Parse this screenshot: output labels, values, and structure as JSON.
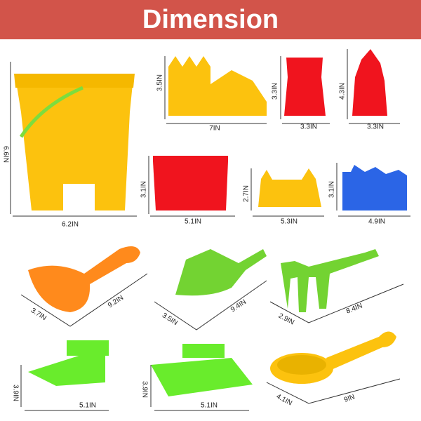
{
  "title": "Dimension",
  "items": [
    {
      "height": "6.6IN",
      "width": "6.2IN"
    },
    {
      "height": "3.5IN",
      "width": "7IN"
    },
    {
      "height": "3.3IN",
      "width": "3.3IN"
    },
    {
      "height": "4.3IN",
      "width": "3.3IN"
    },
    {
      "height": "3.1IN",
      "width": "5.1IN"
    },
    {
      "height": "2.7IN",
      "width": "5.3IN"
    },
    {
      "height": "3.1IN",
      "width": "4.9IN"
    },
    {
      "height": "3.7IN",
      "width": "9.2IN"
    },
    {
      "height": "3.5IN",
      "width": "9.4IN"
    },
    {
      "height": "2.9IN",
      "width": "8.4IN"
    },
    {
      "height": "3.9IN",
      "width": "5.1IN"
    },
    {
      "height": "3.9IN",
      "width": "5.1IN"
    },
    {
      "height": "4.1IN",
      "width": "9IN"
    }
  ]
}
